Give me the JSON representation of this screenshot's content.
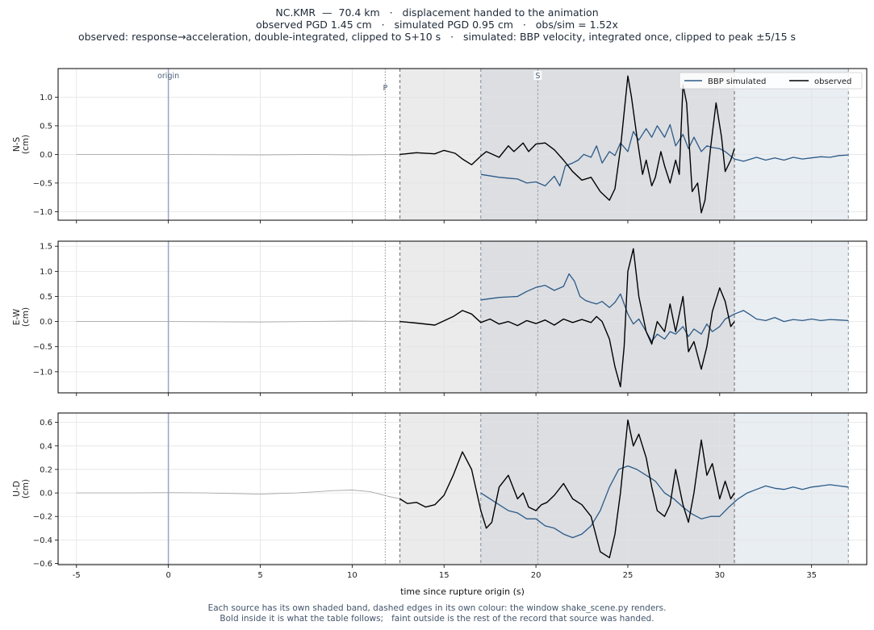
{
  "figure": {
    "title_lines": [
      "NC.KMR  —  70.4 km   ·   displacement handed to the animation",
      "observed PGD 1.45 cm   ·   simulated PGD 0.95 cm   ·   obs/sim = 1.52x",
      "observed: response→acceleration, double-integrated, clipped to S+10 s   ·   simulated: BBP velocity, integrated once, clipped to peak ±5/15 s"
    ],
    "footer_lines": [
      "Each source has its own shaded band, dashed edges in its own colour: the window shake_scene.py renders.",
      "Bold inside it is what the table follows;   faint outside is the rest of the record that source was handed."
    ],
    "colors": {
      "observed": "#000000",
      "simulated": "#2c5a87",
      "observed_band": "#ebebeb",
      "simulated_band": "#e9eef3",
      "overlap_band": "#dcdee2",
      "origin_line": "#9aa6c8",
      "faint_trace": "#a8a8a8"
    }
  },
  "chart_data": {
    "type": "line",
    "xlabel": "time since rupture origin (s)",
    "xlim": [
      -6,
      38
    ],
    "xticks": [
      -5,
      0,
      5,
      10,
      15,
      20,
      25,
      30,
      35
    ],
    "grid": true,
    "legend": {
      "placement": "top-right",
      "entries": [
        "BBP simulated",
        "observed"
      ]
    },
    "markers": [
      {
        "label": "origin",
        "t": 0,
        "style": "solid"
      },
      {
        "label": "P",
        "t": 11.8,
        "style": "dotted"
      },
      {
        "label": "S",
        "t": 20.1,
        "style": "dashed"
      }
    ],
    "windows": {
      "observed": [
        12.6,
        30.8
      ],
      "simulated": [
        17.0,
        37.0
      ]
    },
    "panels": [
      {
        "ylabel": [
          "N-S",
          "(cm)"
        ],
        "ylim": [
          -1.15,
          1.5
        ],
        "yticks": [
          -1.0,
          -0.5,
          0.0,
          0.5,
          1.0
        ],
        "yticklabels": [
          "−1.0",
          "−0.5",
          "0.0",
          "0.5",
          "1.0"
        ],
        "faint": {
          "t": [
            -5,
            0,
            5,
            8,
            10,
            12.6
          ],
          "v": [
            0,
            0,
            -0.01,
            0,
            -0.01,
            0
          ]
        },
        "observed": {
          "t": [
            12.6,
            13.5,
            14.5,
            15,
            15.6,
            16,
            16.5,
            17,
            17.3,
            18,
            18.5,
            18.8,
            19.3,
            19.6,
            20,
            20.5,
            21,
            21.5,
            22,
            22.5,
            23,
            23.5,
            24,
            24.3,
            24.6,
            25,
            25.2,
            25.5,
            25.8,
            26,
            26.3,
            26.5,
            26.8,
            27,
            27.3,
            27.6,
            27.8,
            28,
            28.2,
            28.5,
            28.8,
            29,
            29.2,
            29.5,
            29.8,
            30.1,
            30.3,
            30.6,
            30.8
          ],
          "v": [
            0.0,
            0.03,
            0.01,
            0.07,
            0.02,
            -0.08,
            -0.18,
            -0.03,
            0.05,
            -0.05,
            0.15,
            0.05,
            0.2,
            0.05,
            0.18,
            0.2,
            0.08,
            -0.1,
            -0.3,
            -0.45,
            -0.4,
            -0.65,
            -0.8,
            -0.6,
            0.1,
            1.37,
            1.0,
            0.3,
            -0.35,
            -0.1,
            -0.55,
            -0.4,
            0.05,
            -0.2,
            -0.5,
            -0.1,
            -0.35,
            1.22,
            0.9,
            -0.65,
            -0.5,
            -1.02,
            -0.8,
            0.1,
            0.9,
            0.3,
            -0.3,
            -0.1,
            0.1
          ]
        },
        "simulated": {
          "t": [
            17,
            18,
            19,
            19.5,
            20,
            20.5,
            21,
            21.3,
            21.6,
            22,
            22.3,
            22.6,
            23,
            23.3,
            23.6,
            24,
            24.3,
            24.6,
            25,
            25.3,
            25.6,
            26,
            26.3,
            26.6,
            27,
            27.3,
            27.6,
            28,
            28.3,
            28.6,
            29,
            29.3,
            29.6,
            30,
            30.3,
            30.8,
            31.3,
            32,
            32.5,
            33,
            33.5,
            34,
            34.5,
            35,
            35.5,
            36,
            36.5,
            37
          ],
          "v": [
            -0.35,
            -0.4,
            -0.43,
            -0.5,
            -0.48,
            -0.55,
            -0.38,
            -0.55,
            -0.2,
            -0.15,
            -0.1,
            0.0,
            -0.05,
            0.15,
            -0.15,
            0.05,
            -0.02,
            0.2,
            0.05,
            0.4,
            0.25,
            0.45,
            0.3,
            0.5,
            0.3,
            0.52,
            0.15,
            0.35,
            0.1,
            0.3,
            0.05,
            0.15,
            0.12,
            0.1,
            0.05,
            -0.08,
            -0.12,
            -0.05,
            -0.1,
            -0.06,
            -0.1,
            -0.05,
            -0.08,
            -0.06,
            -0.04,
            -0.05,
            -0.02,
            -0.01
          ]
        }
      },
      {
        "ylabel": [
          "E-W",
          "(cm)"
        ],
        "ylim": [
          -1.42,
          1.6
        ],
        "yticks": [
          -1.0,
          -0.5,
          0.0,
          0.5,
          1.0,
          1.5
        ],
        "yticklabels": [
          "−1.0",
          "−0.5",
          "0.0",
          "0.5",
          "1.0",
          "1.5"
        ],
        "faint": {
          "t": [
            -5,
            0,
            5,
            10,
            12.6
          ],
          "v": [
            0,
            0,
            -0.01,
            0.01,
            0
          ]
        },
        "observed": {
          "t": [
            12.6,
            13.5,
            14.5,
            15.5,
            16,
            16.5,
            17,
            17.5,
            18,
            18.5,
            19,
            19.5,
            20,
            20.5,
            21,
            21.5,
            22,
            22.5,
            23,
            23.3,
            23.6,
            24,
            24.3,
            24.6,
            24.8,
            25,
            25.3,
            25.6,
            26,
            26.3,
            26.6,
            27,
            27.3,
            27.6,
            28,
            28.3,
            28.6,
            29,
            29.3,
            29.6,
            30,
            30.3,
            30.6,
            30.8
          ],
          "v": [
            0.0,
            -0.03,
            -0.07,
            0.1,
            0.22,
            0.15,
            -0.02,
            0.05,
            -0.05,
            0.0,
            -0.08,
            0.02,
            -0.04,
            0.03,
            -0.07,
            0.05,
            -0.02,
            0.04,
            -0.02,
            0.1,
            0.0,
            -0.35,
            -0.9,
            -1.3,
            -0.5,
            1.0,
            1.45,
            0.5,
            -0.2,
            -0.45,
            0.0,
            -0.2,
            0.35,
            -0.2,
            0.5,
            -0.6,
            -0.4,
            -0.95,
            -0.5,
            0.2,
            0.67,
            0.4,
            -0.1,
            0.0
          ]
        },
        "simulated": {
          "t": [
            17,
            18,
            19,
            19.5,
            20,
            20.5,
            21,
            21.5,
            21.8,
            22.1,
            22.4,
            22.7,
            23,
            23.3,
            23.6,
            24,
            24.3,
            24.6,
            25,
            25.3,
            25.6,
            26,
            26.3,
            26.6,
            27,
            27.3,
            27.6,
            28,
            28.3,
            28.6,
            29,
            29.3,
            29.6,
            30,
            30.3,
            30.8,
            31.3,
            31.6,
            32,
            32.5,
            33,
            33.5,
            34,
            34.5,
            35,
            35.5,
            36,
            36.5,
            37
          ],
          "v": [
            0.43,
            0.48,
            0.5,
            0.6,
            0.68,
            0.72,
            0.62,
            0.7,
            0.95,
            0.8,
            0.5,
            0.42,
            0.38,
            0.35,
            0.4,
            0.28,
            0.38,
            0.55,
            0.15,
            -0.05,
            0.05,
            -0.2,
            -0.4,
            -0.25,
            -0.35,
            -0.2,
            -0.25,
            -0.1,
            -0.3,
            -0.15,
            -0.25,
            -0.05,
            -0.2,
            -0.1,
            0.05,
            0.15,
            0.22,
            0.15,
            0.05,
            0.02,
            0.08,
            0.0,
            0.04,
            0.02,
            0.05,
            0.02,
            0.04,
            0.03,
            0.02
          ]
        }
      },
      {
        "ylabel": [
          "U-D",
          "(cm)"
        ],
        "ylim": [
          -0.61,
          0.68
        ],
        "yticks": [
          -0.6,
          -0.4,
          -0.2,
          0.0,
          0.2,
          0.4,
          0.6
        ],
        "yticklabels": [
          "−0.6",
          "−0.4",
          "−0.2",
          "0.0",
          "0.2",
          "0.4",
          "0.6"
        ],
        "faint": {
          "t": [
            -5,
            -2,
            0,
            2,
            5,
            7,
            9,
            10,
            11,
            12,
            12.6
          ],
          "v": [
            0,
            0,
            0.003,
            0,
            -0.01,
            0,
            0.02,
            0.025,
            0.01,
            -0.03,
            -0.05
          ]
        },
        "observed": {
          "t": [
            12.6,
            13,
            13.5,
            14,
            14.5,
            15,
            15.5,
            16,
            16.5,
            17,
            17.3,
            17.6,
            18,
            18.5,
            19,
            19.3,
            19.6,
            20,
            20.3,
            20.6,
            21,
            21.5,
            22,
            22.5,
            23,
            23.5,
            24,
            24.3,
            24.6,
            25,
            25.3,
            25.6,
            26,
            26.3,
            26.6,
            27,
            27.3,
            27.6,
            28,
            28.3,
            28.6,
            29,
            29.3,
            29.6,
            30,
            30.3,
            30.6,
            30.8
          ],
          "v": [
            -0.05,
            -0.09,
            -0.08,
            -0.12,
            -0.1,
            -0.02,
            0.15,
            0.35,
            0.2,
            -0.15,
            -0.3,
            -0.25,
            0.05,
            0.15,
            -0.05,
            0.0,
            -0.12,
            -0.15,
            -0.1,
            -0.08,
            -0.02,
            0.08,
            -0.05,
            -0.1,
            -0.2,
            -0.5,
            -0.55,
            -0.35,
            0.0,
            0.62,
            0.4,
            0.5,
            0.3,
            0.05,
            -0.15,
            -0.2,
            -0.1,
            0.2,
            -0.1,
            -0.25,
            0.0,
            0.45,
            0.15,
            0.25,
            -0.05,
            0.1,
            -0.05,
            0.0
          ]
        },
        "simulated": {
          "t": [
            17,
            17.5,
            18,
            18.5,
            19,
            19.5,
            20,
            20.5,
            21,
            21.5,
            22,
            22.5,
            23,
            23.5,
            24,
            24.5,
            25,
            25.5,
            26,
            26.5,
            27,
            27.5,
            28,
            28.5,
            29,
            29.5,
            30,
            30.5,
            31,
            31.5,
            32,
            32.5,
            33,
            33.5,
            34,
            34.5,
            35,
            35.5,
            36,
            36.5,
            37
          ],
          "v": [
            0.0,
            -0.05,
            -0.1,
            -0.15,
            -0.17,
            -0.22,
            -0.22,
            -0.28,
            -0.3,
            -0.35,
            -0.38,
            -0.35,
            -0.28,
            -0.15,
            0.05,
            0.2,
            0.23,
            0.2,
            0.15,
            0.1,
            0.0,
            -0.05,
            -0.12,
            -0.18,
            -0.22,
            -0.2,
            -0.2,
            -0.12,
            -0.05,
            0.0,
            0.03,
            0.06,
            0.04,
            0.03,
            0.05,
            0.03,
            0.05,
            0.06,
            0.07,
            0.06,
            0.05
          ]
        }
      }
    ]
  }
}
